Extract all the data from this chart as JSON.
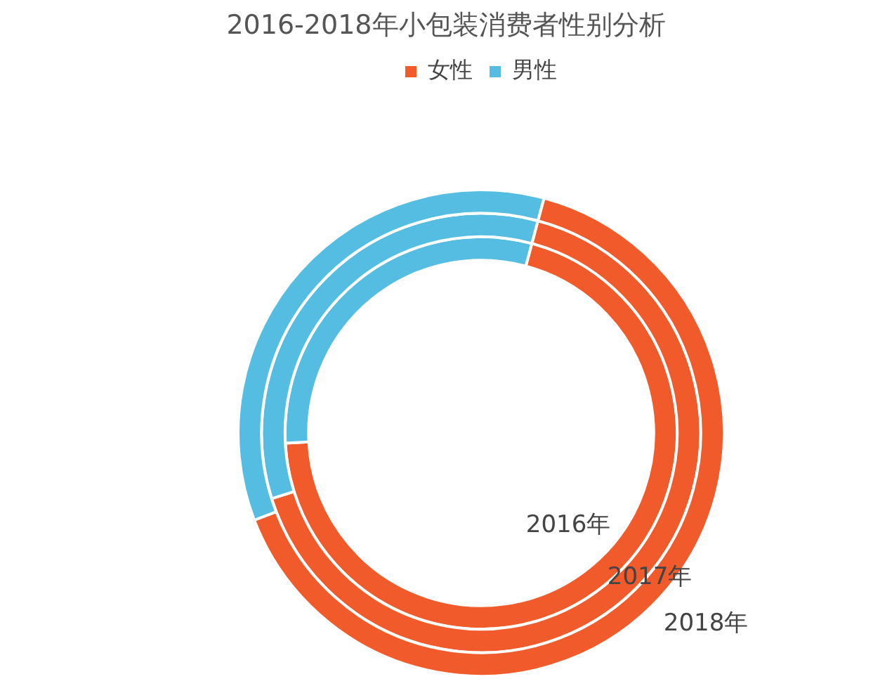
{
  "chart_data": {
    "type": "donut",
    "title": "2016-2018年小包装消费者性别分析",
    "categories": [
      "女性",
      "男性"
    ],
    "colors": [
      "#f15a2b",
      "#54bde1"
    ],
    "series": [
      {
        "name": "2016年",
        "values": [
          70,
          30
        ]
      },
      {
        "name": "2017年",
        "values": [
          66,
          34
        ]
      },
      {
        "name": "2018年",
        "values": [
          65,
          35
        ]
      }
    ],
    "legend": "top"
  }
}
